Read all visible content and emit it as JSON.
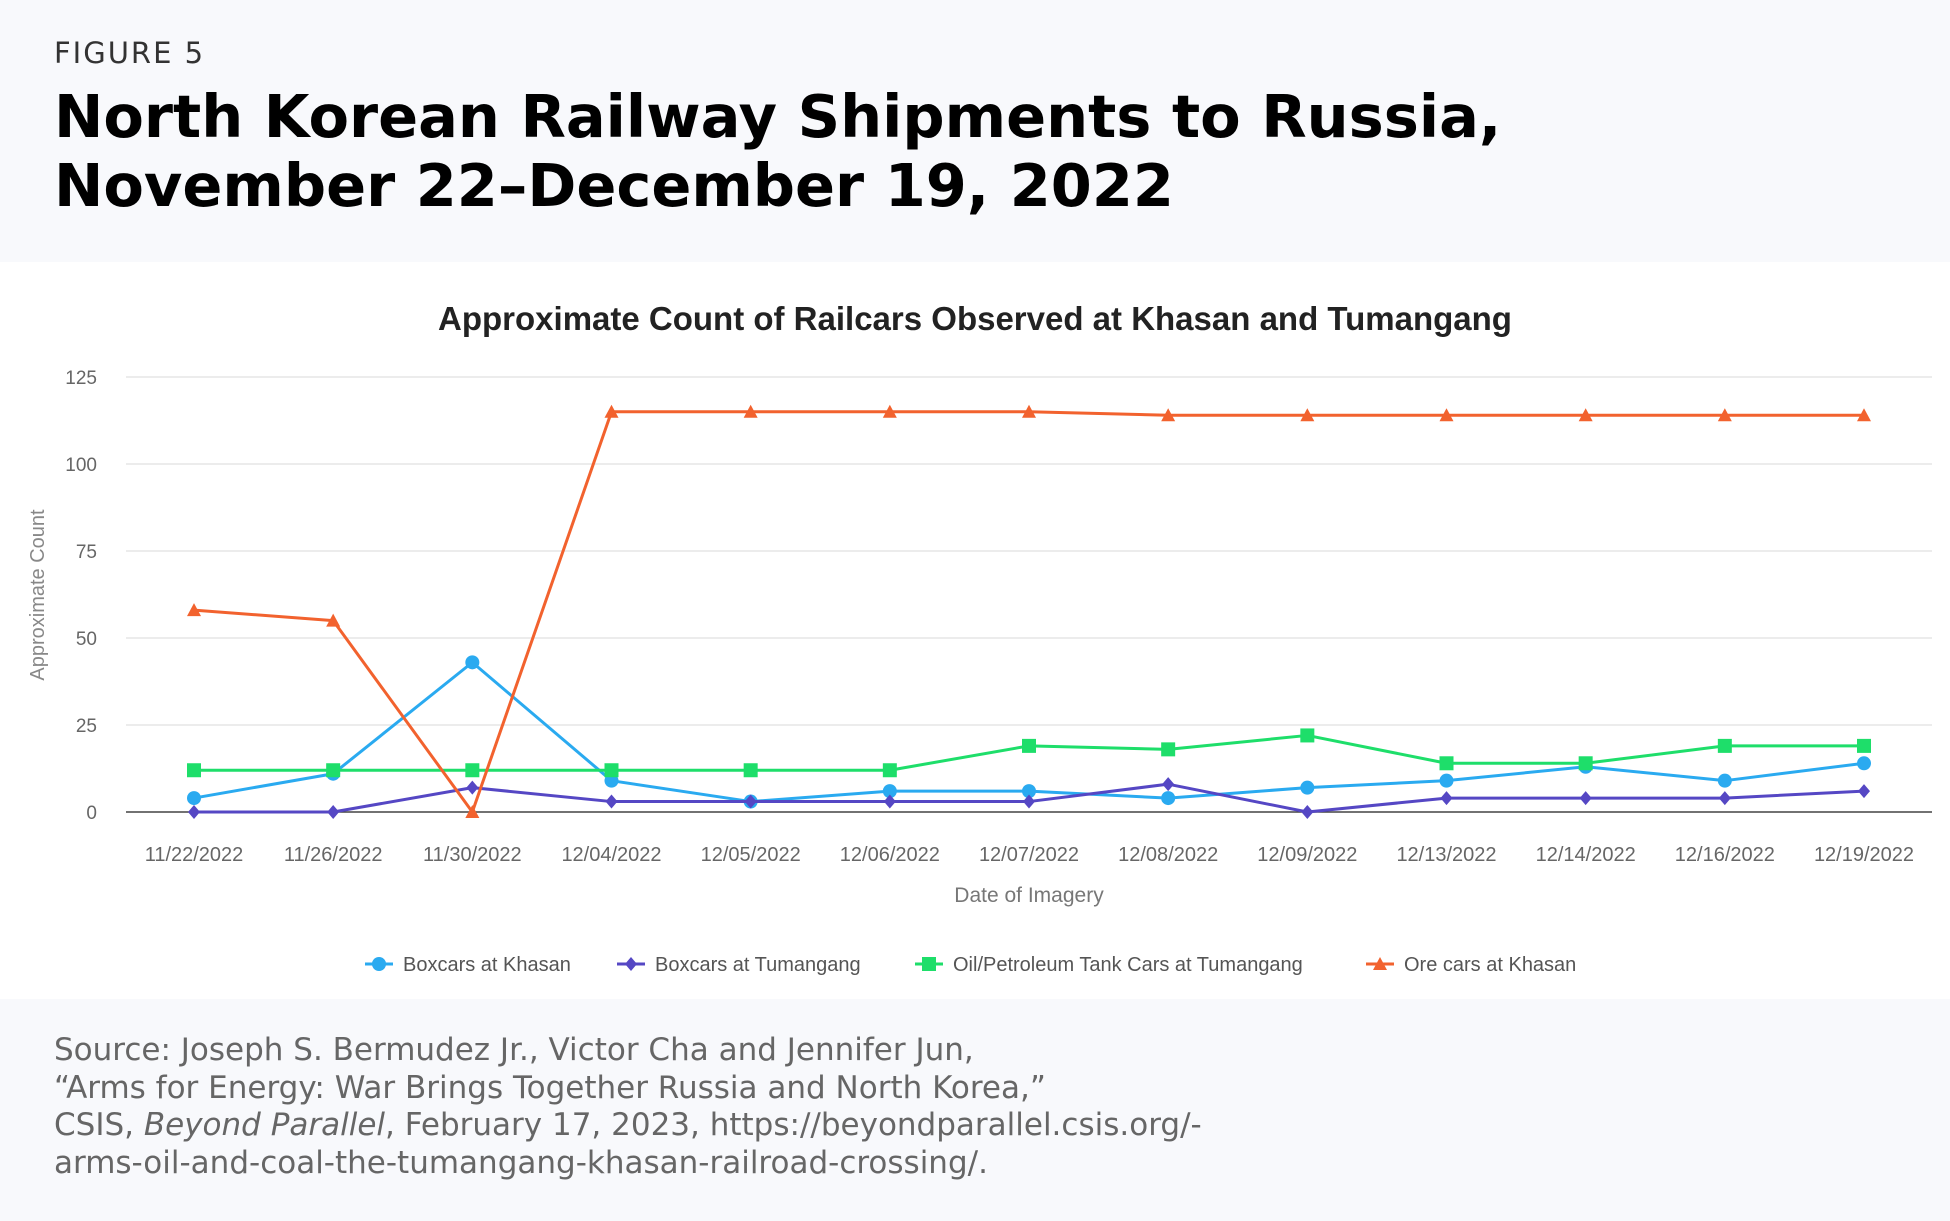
{
  "figure": {
    "label": "FIGURE 5",
    "title_line1": "North Korean Railway Shipments to Russia,",
    "title_line2": "November 22–December 19, 2022"
  },
  "source": {
    "line1": "Source: Joseph S. Bermudez Jr., Victor Cha and Jennifer Jun,",
    "line2": "“Arms for Energy: War Brings Together Russia and North Korea,”",
    "line3_pre": "CSIS, ",
    "line3_pub": "Beyond Parallel",
    "line3_post": ", February 17, 2023, https://beyondparallel.csis.org/-",
    "line4": "arms-oil-and-coal-the-tumangang-khasan-railroad-crossing/."
  },
  "chart_data": {
    "type": "line",
    "title": "Approximate Count of Railcars Observed at Khasan and Tumangang",
    "xlabel": "Date of Imagery",
    "ylabel": "Approximate Count",
    "ylim": [
      0,
      125
    ],
    "yticks": [
      0,
      25,
      50,
      75,
      100,
      125
    ],
    "grid": true,
    "legend_position": "bottom",
    "categories": [
      "11/22/2022",
      "11/26/2022",
      "11/30/2022",
      "12/04/2022",
      "12/05/2022",
      "12/06/2022",
      "12/07/2022",
      "12/08/2022",
      "12/09/2022",
      "12/13/2022",
      "12/14/2022",
      "12/16/2022",
      "12/19/2022"
    ],
    "series": [
      {
        "name": "Boxcars at Khasan",
        "color": "#2aaaf0",
        "marker": "circle",
        "values": [
          4,
          11,
          43,
          9,
          3,
          6,
          6,
          4,
          7,
          9,
          13,
          9,
          14
        ]
      },
      {
        "name": "Boxcars at Tumangang",
        "color": "#5547c4",
        "marker": "diamond",
        "values": [
          0,
          0,
          7,
          3,
          3,
          3,
          3,
          8,
          0,
          4,
          4,
          4,
          6
        ]
      },
      {
        "name": "Oil/Petroleum Tank Cars at Tumangang",
        "color": "#1ede6a",
        "marker": "square",
        "values": [
          12,
          12,
          12,
          12,
          12,
          12,
          19,
          18,
          22,
          14,
          14,
          19,
          19
        ]
      },
      {
        "name": "Ore cars at Khasan",
        "color": "#f2622e",
        "marker": "triangle",
        "values": [
          58,
          55,
          0,
          115,
          115,
          115,
          115,
          114,
          114,
          114,
          114,
          114,
          114
        ]
      }
    ]
  }
}
